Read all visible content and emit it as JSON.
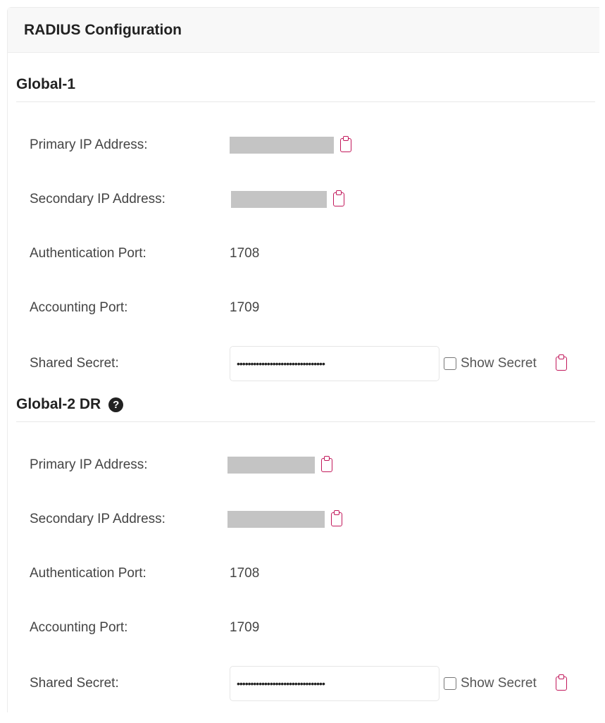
{
  "title": "RADIUS Configuration",
  "sections": [
    {
      "title": "Global-1",
      "help": false,
      "primary_label": "Primary IP Address:",
      "secondary_label": "Secondary IP Address:",
      "auth_label": "Authentication Port:",
      "auth_port": "1708",
      "acct_label": "Accounting Port:",
      "acct_port": "1709",
      "secret_label": "Shared Secret:",
      "secret": "••••••••••••••••••••••••••••••••",
      "show_label": "Show Secret"
    },
    {
      "title": "Global-2 DR",
      "help": true,
      "primary_label": "Primary IP Address:",
      "secondary_label": "Secondary IP Address:",
      "auth_label": "Authentication Port:",
      "auth_port": "1708",
      "acct_label": "Accounting Port:",
      "acct_port": "1709",
      "secret_label": "Shared Secret:",
      "secret": "••••••••••••••••••••••••••••••••",
      "show_label": "Show Secret"
    }
  ],
  "colors": {
    "accent": "#c2185b",
    "redacted": "#c4c4c4"
  }
}
